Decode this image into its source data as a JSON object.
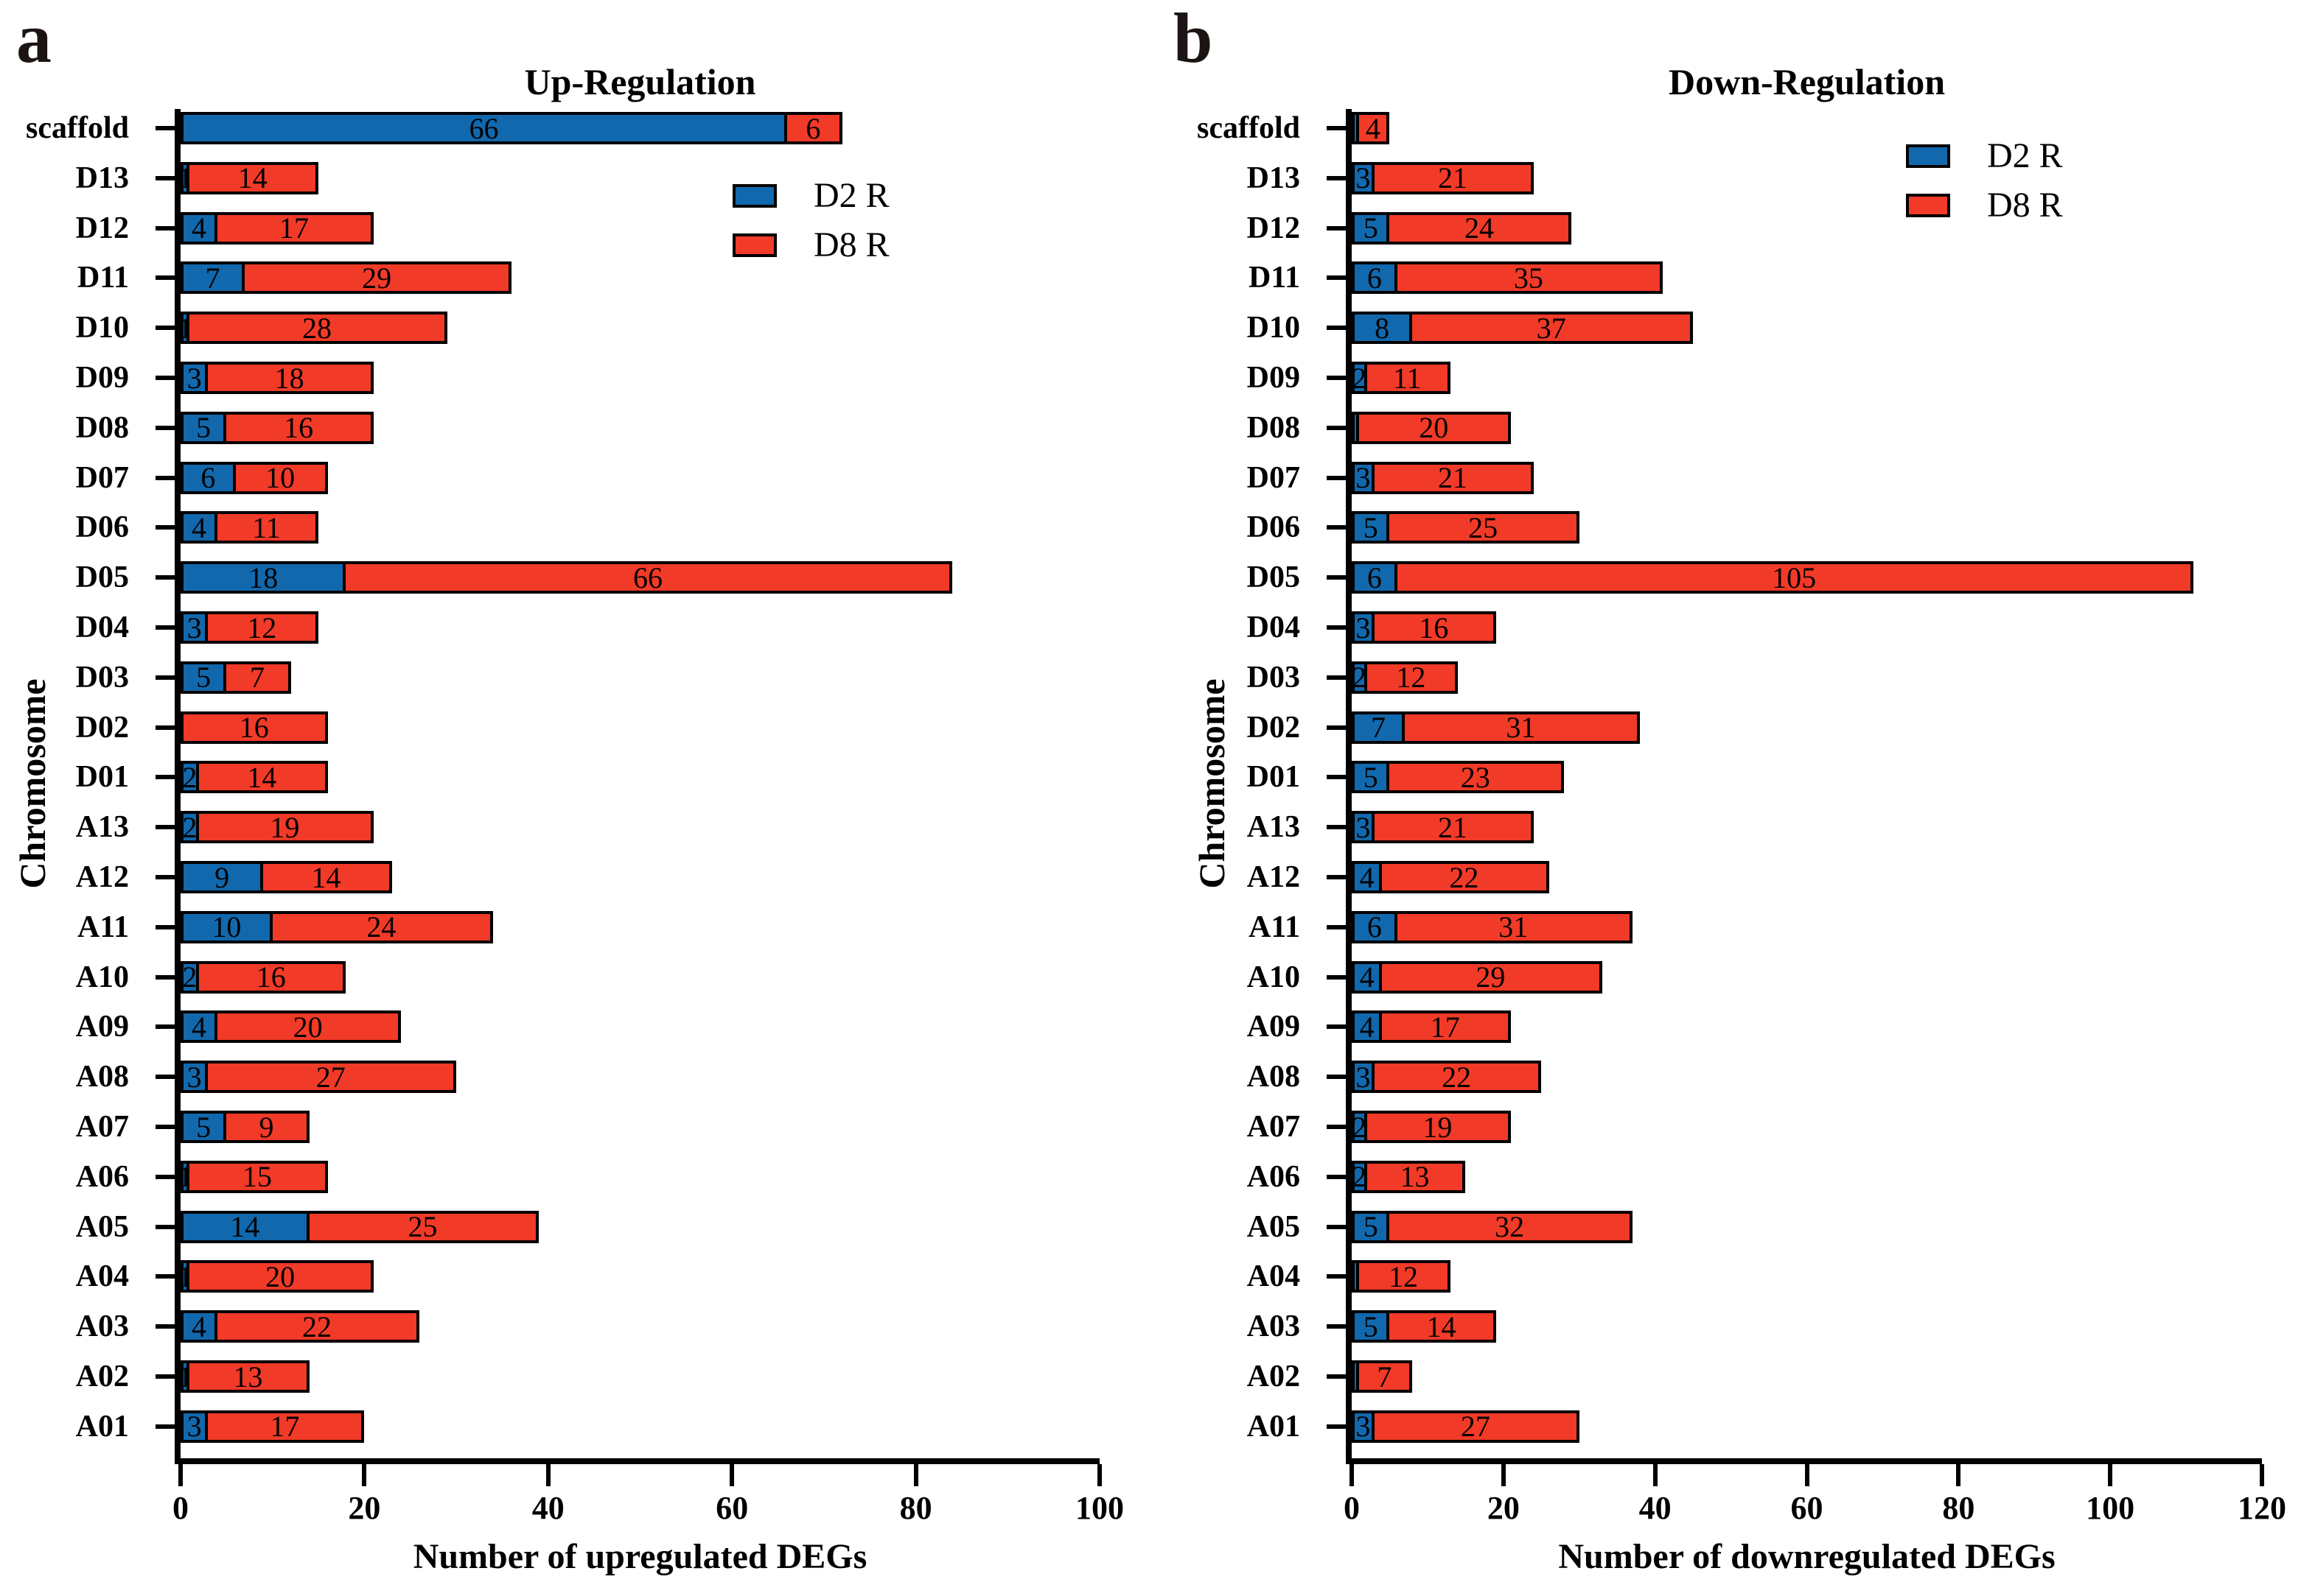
{
  "figure": {
    "panels": [
      {
        "letter": "a",
        "title": "Up-Regulation",
        "xlabel": "Number of upregulated DEGs",
        "ylabel": "Chromosome"
      },
      {
        "letter": "b",
        "title": "Down-Regulation",
        "xlabel": "Number of downregulated DEGs",
        "ylabel": "Chromosome"
      }
    ],
    "legend": {
      "items": [
        {
          "label": "D2 R",
          "color": "#1268ac"
        },
        {
          "label": "D8 R",
          "color": "#f13a27"
        }
      ]
    },
    "colors": {
      "d2r_blue": "#1268ac",
      "d8r_red": "#f13a27",
      "outline": "#000000",
      "background": "#ffffff"
    }
  },
  "chart_data": [
    {
      "type": "bar",
      "orientation": "horizontal",
      "stacked": true,
      "title": "Up-Regulation",
      "xlabel": "Number of upregulated DEGs",
      "ylabel": "Chromosome",
      "xlim": [
        0,
        100
      ],
      "x_ticks": [
        0,
        20,
        40,
        60,
        80,
        100
      ],
      "grid": false,
      "legend_position": "inside-upper-right-of-plot",
      "categories_top_to_bottom": [
        "scaffold",
        "D13",
        "D12",
        "D11",
        "D10",
        "D09",
        "D08",
        "D07",
        "D06",
        "D05",
        "D04",
        "D03",
        "D02",
        "D01",
        "A13",
        "A12",
        "A11",
        "A10",
        "A09",
        "A08",
        "A07",
        "A06",
        "A05",
        "A04",
        "A03",
        "A02",
        "A01"
      ],
      "series": [
        {
          "name": "D2 R",
          "color": "#1268ac",
          "values": [
            66,
            1,
            4,
            7,
            1,
            3,
            5,
            6,
            4,
            18,
            3,
            5,
            0,
            2,
            2,
            9,
            10,
            2,
            4,
            3,
            5,
            1,
            14,
            1,
            4,
            1,
            3
          ],
          "bar_labels": [
            "66",
            "1",
            "4",
            "7",
            "1",
            "3",
            "5",
            "6",
            "4",
            "18",
            "3",
            "5",
            "",
            "2",
            "2",
            "9",
            "10",
            "2",
            "4",
            "3",
            "5",
            "1",
            "14",
            "1",
            "4",
            "1",
            "3"
          ]
        },
        {
          "name": "D8 R",
          "color": "#f13a27",
          "values": [
            6,
            14,
            17,
            29,
            28,
            18,
            16,
            10,
            11,
            66,
            12,
            7,
            16,
            14,
            19,
            14,
            24,
            16,
            20,
            27,
            9,
            15,
            25,
            20,
            22,
            13,
            17
          ],
          "bar_labels": [
            "6",
            "14",
            "17",
            "29",
            "28",
            "18",
            "16",
            "10",
            "11",
            "66",
            "12",
            "7",
            "16",
            "14",
            "19",
            "14",
            "24",
            "16",
            "20",
            "27",
            "9",
            "15",
            "25",
            "20",
            "22",
            "13",
            "17"
          ]
        }
      ]
    },
    {
      "type": "bar",
      "orientation": "horizontal",
      "stacked": true,
      "title": "Down-Regulation",
      "xlabel": "Number of downregulated DEGs",
      "ylabel": "Chromosome",
      "xlim": [
        0,
        120
      ],
      "x_ticks": [
        0,
        20,
        40,
        60,
        80,
        100,
        120
      ],
      "grid": false,
      "legend_position": "inside-upper-right-of-plot",
      "categories_top_to_bottom": [
        "scaffold",
        "D13",
        "D12",
        "D11",
        "D10",
        "D09",
        "D08",
        "D07",
        "D06",
        "D05",
        "D04",
        "D03",
        "D02",
        "D01",
        "A13",
        "A12",
        "A11",
        "A10",
        "A09",
        "A08",
        "A07",
        "A06",
        "A05",
        "A04",
        "A03",
        "A02",
        "A01"
      ],
      "series": [
        {
          "name": "D2 R",
          "color": "#1268ac",
          "values": [
            1,
            3,
            5,
            6,
            8,
            2,
            1,
            3,
            5,
            6,
            3,
            2,
            7,
            5,
            3,
            4,
            6,
            4,
            4,
            3,
            2,
            2,
            5,
            1,
            5,
            1,
            3
          ],
          "bar_labels": [
            "",
            "3",
            "5",
            "6",
            "8",
            "2",
            "",
            "3",
            "5",
            "6",
            "3",
            "2",
            "7",
            "5",
            "3",
            "4",
            "6",
            "4",
            "4",
            "3",
            "2",
            "2",
            "5",
            "",
            "5",
            "",
            "3"
          ]
        },
        {
          "name": "D8 R",
          "color": "#f13a27",
          "values": [
            4,
            21,
            24,
            35,
            37,
            11,
            20,
            21,
            25,
            105,
            16,
            12,
            31,
            23,
            21,
            22,
            31,
            29,
            17,
            22,
            19,
            13,
            32,
            12,
            14,
            7,
            27
          ],
          "bar_labels": [
            "4",
            "21",
            "24",
            "35",
            "37",
            "11",
            "20",
            "21",
            "25",
            "105",
            "16",
            "12",
            "31",
            "23",
            "21",
            "22",
            "31",
            "29",
            "17",
            "22",
            "19",
            "13",
            "32",
            "12",
            "14",
            "7",
            "27"
          ]
        }
      ]
    }
  ]
}
